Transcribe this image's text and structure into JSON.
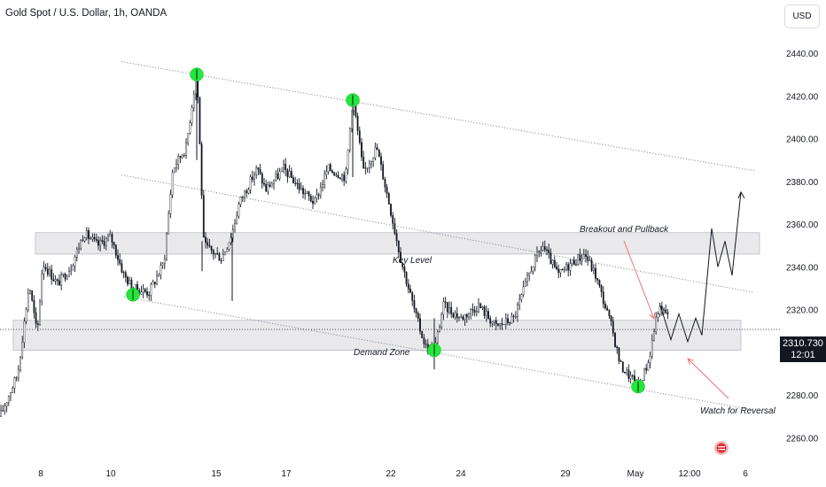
{
  "header": {
    "title": "Gold Spot / U.S. Dollar, 1h, OANDA"
  },
  "toolbar": {
    "currency_label": "USD"
  },
  "price_marker": {
    "price": "2310.730",
    "countdown": "12:01"
  },
  "annotations": {
    "key_level": "Key Level",
    "demand_zone": "Demand Zone",
    "breakout": "Breakout and Pullback",
    "reversal": "Watch for Reversal"
  },
  "colors": {
    "candle": "#131722",
    "zone_fill": "#e9e9ec",
    "pivot": "#22e83a",
    "arrow_red": "#f0707a",
    "background": "#ffffff"
  },
  "chart_data": {
    "type": "candlestick",
    "instrument": "Gold Spot / U.S. Dollar",
    "interval": "1h",
    "ylim": [
      2256,
      2448
    ],
    "y_ticks": [
      2260,
      2280,
      2300,
      2320,
      2340,
      2360,
      2380,
      2400,
      2420,
      2440
    ],
    "x_tick_labels": [
      "8",
      "10",
      "15",
      "17",
      "22",
      "24",
      "29",
      "May",
      "12:00",
      "6"
    ],
    "price_path": [
      [
        0,
        2270
      ],
      [
        20,
        2290
      ],
      [
        33,
        2332
      ],
      [
        42,
        2308
      ],
      [
        48,
        2342
      ],
      [
        65,
        2332
      ],
      [
        80,
        2340
      ],
      [
        95,
        2356
      ],
      [
        110,
        2350
      ],
      [
        125,
        2354
      ],
      [
        140,
        2336
      ],
      [
        150,
        2330
      ],
      [
        168,
        2328
      ],
      [
        185,
        2342
      ],
      [
        195,
        2386
      ],
      [
        210,
        2396
      ],
      [
        222,
        2432
      ],
      [
        230,
        2350
      ],
      [
        250,
        2344
      ],
      [
        262,
        2356
      ],
      [
        270,
        2370
      ],
      [
        290,
        2386
      ],
      [
        300,
        2376
      ],
      [
        320,
        2386
      ],
      [
        340,
        2376
      ],
      [
        355,
        2370
      ],
      [
        370,
        2386
      ],
      [
        390,
        2382
      ],
      [
        398,
        2420
      ],
      [
        410,
        2384
      ],
      [
        425,
        2396
      ],
      [
        440,
        2368
      ],
      [
        452,
        2344
      ],
      [
        470,
        2316
      ],
      [
        480,
        2303
      ],
      [
        490,
        2300
      ],
      [
        500,
        2322
      ],
      [
        520,
        2316
      ],
      [
        540,
        2322
      ],
      [
        560,
        2312
      ],
      [
        580,
        2316
      ],
      [
        600,
        2340
      ],
      [
        612,
        2350
      ],
      [
        630,
        2336
      ],
      [
        645,
        2342
      ],
      [
        660,
        2346
      ],
      [
        672,
        2336
      ],
      [
        690,
        2312
      ],
      [
        700,
        2294
      ],
      [
        720,
        2284
      ],
      [
        732,
        2296
      ],
      [
        742,
        2320
      ],
      [
        755,
        2318
      ]
    ],
    "zones": [
      {
        "label": "Key Level",
        "low": 2346,
        "high": 2356
      },
      {
        "label": "Demand Zone",
        "low": 2301,
        "high": 2315
      }
    ],
    "pivot_highs": [
      2430,
      2418
    ],
    "pivot_lows": [
      2327,
      2301,
      2284
    ],
    "channel_lines": [
      {
        "name": "upper",
        "from": 2436,
        "to": 2385
      },
      {
        "name": "middle",
        "from": 2383,
        "to": 2328
      },
      {
        "name": "lower",
        "from": 2326,
        "to": 2273
      }
    ],
    "projection": [
      2322,
      2306,
      2318,
      2305,
      2316,
      2308,
      2358,
      2340,
      2352,
      2336,
      2375
    ],
    "last_price": 2310.73
  }
}
